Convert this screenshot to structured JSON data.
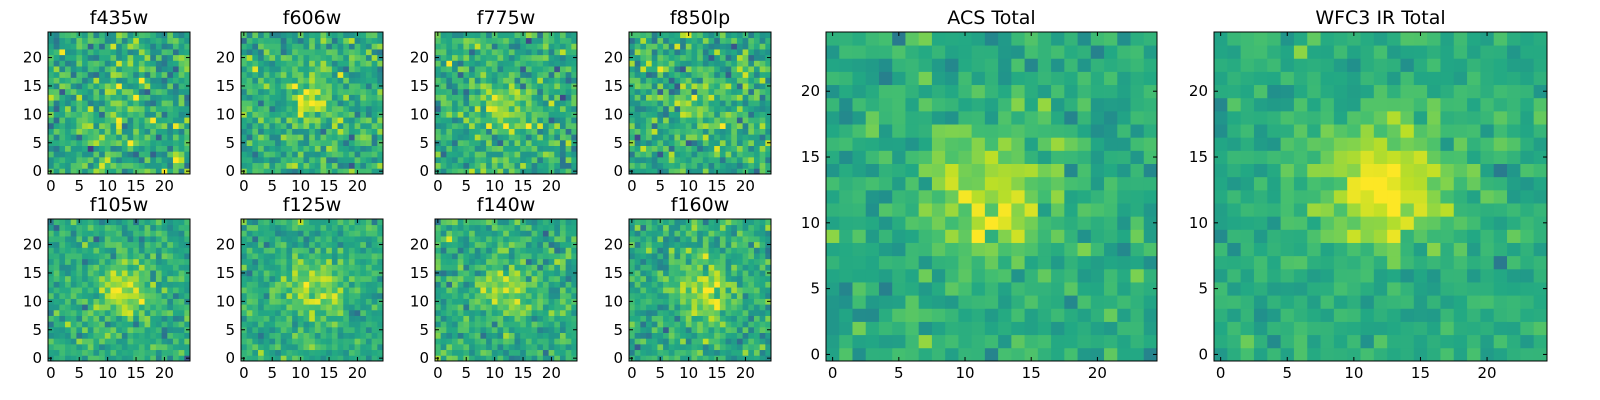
{
  "chart_data": [
    {
      "type": "heatmap",
      "title": "f435w",
      "xlim": [
        -0.5,
        24.5
      ],
      "ylim": [
        -0.5,
        24.5
      ],
      "xticks": [
        "0",
        "5",
        "10",
        "15",
        "20"
      ],
      "yticks": [
        "0",
        "5",
        "10",
        "15",
        "20"
      ],
      "colormap": "viridis",
      "center": [
        12,
        12
      ],
      "peak_strength": 0.18,
      "noise_level": 1.0,
      "seed": 1
    },
    {
      "type": "heatmap",
      "title": "f606w",
      "xlim": [
        -0.5,
        24.5
      ],
      "ylim": [
        -0.5,
        24.5
      ],
      "xticks": [
        "0",
        "5",
        "10",
        "15",
        "20"
      ],
      "yticks": [
        "0",
        "5",
        "10",
        "15",
        "20"
      ],
      "colormap": "viridis",
      "center": [
        12,
        12
      ],
      "peak_strength": 0.45,
      "noise_level": 0.85,
      "seed": 2
    },
    {
      "type": "heatmap",
      "title": "f775w",
      "xlim": [
        -0.5,
        24.5
      ],
      "ylim": [
        -0.5,
        24.5
      ],
      "xticks": [
        "0",
        "5",
        "10",
        "15",
        "20"
      ],
      "yticks": [
        "0",
        "5",
        "10",
        "15",
        "20"
      ],
      "colormap": "viridis",
      "center": [
        12,
        12
      ],
      "peak_strength": 0.45,
      "noise_level": 0.9,
      "seed": 3
    },
    {
      "type": "heatmap",
      "title": "f850lp",
      "xlim": [
        -0.5,
        24.5
      ],
      "ylim": [
        -0.5,
        24.5
      ],
      "xticks": [
        "0",
        "5",
        "10",
        "15",
        "20"
      ],
      "yticks": [
        "0",
        "5",
        "10",
        "15",
        "20"
      ],
      "colormap": "viridis",
      "center": [
        12,
        12
      ],
      "peak_strength": 0.3,
      "noise_level": 1.0,
      "seed": 4
    },
    {
      "type": "heatmap",
      "title": "f105w",
      "xlim": [
        -0.5,
        24.5
      ],
      "ylim": [
        -0.5,
        24.5
      ],
      "xticks": [
        "0",
        "5",
        "10",
        "15",
        "20"
      ],
      "yticks": [
        "0",
        "5",
        "10",
        "15",
        "20"
      ],
      "colormap": "viridis",
      "center": [
        13,
        12
      ],
      "peak_strength": 0.5,
      "noise_level": 0.7,
      "seed": 5
    },
    {
      "type": "heatmap",
      "title": "f125w",
      "xlim": [
        -0.5,
        24.5
      ],
      "ylim": [
        -0.5,
        24.5
      ],
      "xticks": [
        "0",
        "5",
        "10",
        "15",
        "20"
      ],
      "yticks": [
        "0",
        "5",
        "10",
        "15",
        "20"
      ],
      "colormap": "viridis",
      "center": [
        13,
        12
      ],
      "peak_strength": 0.45,
      "noise_level": 0.6,
      "seed": 6
    },
    {
      "type": "heatmap",
      "title": "f140w",
      "xlim": [
        -0.5,
        24.5
      ],
      "ylim": [
        -0.5,
        24.5
      ],
      "xticks": [
        "0",
        "5",
        "10",
        "15",
        "20"
      ],
      "yticks": [
        "0",
        "5",
        "10",
        "15",
        "20"
      ],
      "colormap": "viridis",
      "center": [
        12,
        12
      ],
      "peak_strength": 0.45,
      "noise_level": 0.7,
      "seed": 7
    },
    {
      "type": "heatmap",
      "title": "f160w",
      "xlim": [
        -0.5,
        24.5
      ],
      "ylim": [
        -0.5,
        24.5
      ],
      "xticks": [
        "0",
        "5",
        "10",
        "15",
        "20"
      ],
      "yticks": [
        "0",
        "5",
        "10",
        "15",
        "20"
      ],
      "colormap": "viridis",
      "center": [
        13,
        12
      ],
      "peak_strength": 0.55,
      "noise_level": 0.75,
      "seed": 8
    },
    {
      "type": "heatmap",
      "title": "ACS Total",
      "xlim": [
        -0.5,
        24.5
      ],
      "ylim": [
        -0.5,
        24.5
      ],
      "xticks": [
        "0",
        "5",
        "10",
        "15",
        "20"
      ],
      "yticks": [
        "0",
        "5",
        "10",
        "15",
        "20"
      ],
      "colormap": "viridis",
      "center": [
        12,
        12
      ],
      "peak_strength": 0.6,
      "noise_level": 0.55,
      "seed": 9
    },
    {
      "type": "heatmap",
      "title": "WFC3 IR Total",
      "xlim": [
        -0.5,
        24.5
      ],
      "ylim": [
        -0.5,
        24.5
      ],
      "xticks": [
        "0",
        "5",
        "10",
        "15",
        "20"
      ],
      "yticks": [
        "0",
        "5",
        "10",
        "15",
        "20"
      ],
      "colormap": "viridis",
      "center": [
        12,
        13
      ],
      "peak_strength": 0.75,
      "noise_level": 0.45,
      "seed": 10
    }
  ]
}
